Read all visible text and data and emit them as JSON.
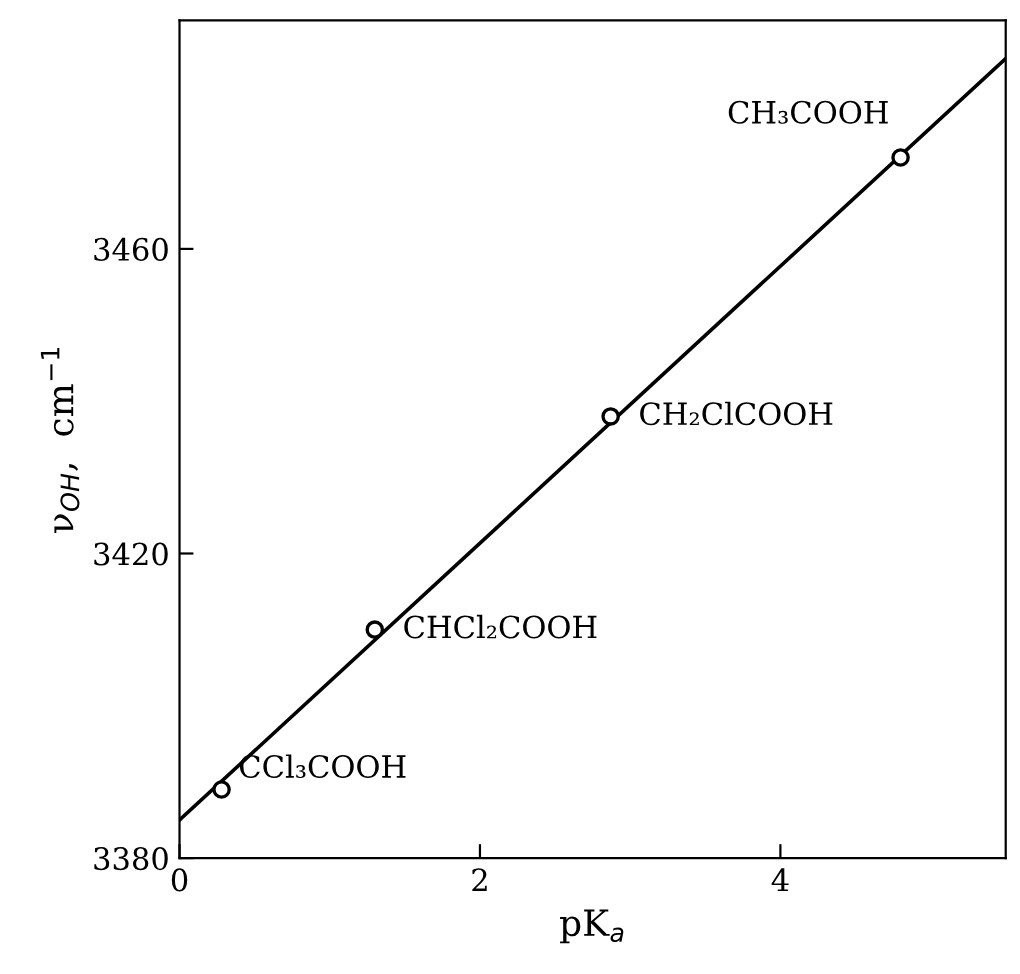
{
  "chart_data": {
    "type": "scatter",
    "xlabel": "pK$_{a}$",
    "ylabel": "ν$_{OH}$,  cm$^{−1}$",
    "series": [
      {
        "x": [
          0.28,
          1.3,
          2.87,
          4.8
        ],
        "values": [
          3389,
          3410,
          3438,
          3472
        ],
        "color": "#000000",
        "marker": "circle"
      },
      {
        "type": "line",
        "x": [
          0,
          5.5
        ],
        "values": [
          3385,
          3485
        ],
        "color": "#000000",
        "marker": "none",
        "line_style": "solid"
      }
    ],
    "annotations": [
      {
        "text": "CCl₃COOH",
        "x": 0.28,
        "y": 3389
      },
      {
        "text": "CHCl₂COOH",
        "x": 1.3,
        "y": 3410
      },
      {
        "text": "CH₂ClCOOH",
        "x": 2.87,
        "y": 3438
      },
      {
        "text": "CH₃COOH",
        "x": 4.8,
        "y": 3472
      }
    ],
    "xlim": [
      0,
      5.5
    ],
    "ylim": [
      3380,
      3490
    ],
    "xticks": [
      0,
      2,
      4
    ],
    "yticks": [
      3380,
      3420,
      3460
    ],
    "grid": false,
    "legend": false
  }
}
